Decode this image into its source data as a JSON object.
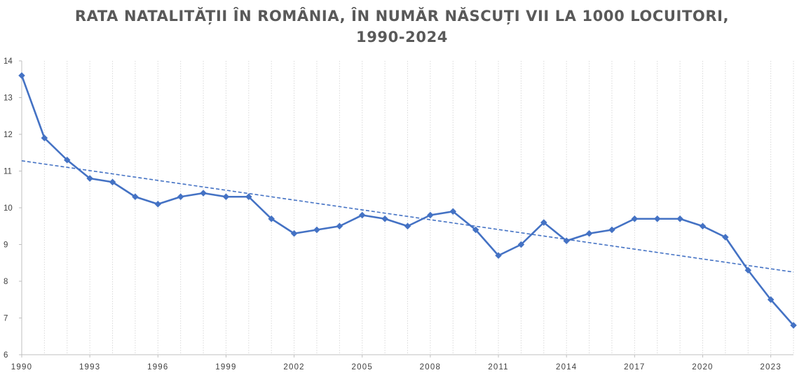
{
  "chart_data": {
    "type": "line",
    "title_line1": "RATA NATALITĂȚII ÎN ROMÂNIA, ÎN NUMĂR NĂSCUȚI VII LA 1000 LOCUITORI,",
    "title_line2": "1990-2024",
    "xlabel": "",
    "ylabel": "",
    "x": [
      1990,
      1991,
      1992,
      1993,
      1994,
      1995,
      1996,
      1997,
      1998,
      1999,
      2000,
      2001,
      2002,
      2003,
      2004,
      2005,
      2006,
      2007,
      2008,
      2009,
      2010,
      2011,
      2012,
      2013,
      2014,
      2015,
      2016,
      2017,
      2018,
      2019,
      2020,
      2021,
      2022,
      2023,
      2024
    ],
    "values": [
      13.6,
      11.9,
      11.3,
      10.8,
      10.7,
      10.3,
      10.1,
      10.3,
      10.4,
      10.3,
      10.3,
      9.7,
      9.3,
      9.4,
      9.5,
      9.8,
      9.7,
      9.5,
      9.8,
      9.9,
      9.4,
      8.7,
      9.0,
      9.6,
      9.1,
      9.3,
      9.4,
      9.7,
      9.7,
      9.7,
      9.5,
      9.2,
      8.3,
      7.5,
      6.8
    ],
    "x_tick_labels": [
      "1990",
      "1993",
      "1996",
      "1999",
      "2002",
      "2005",
      "2008",
      "2011",
      "2014",
      "2017",
      "2020",
      "2023"
    ],
    "y_tick_labels": [
      "6",
      "7",
      "8",
      "9",
      "10",
      "11",
      "12",
      "13",
      "14"
    ],
    "ylim": [
      6,
      14
    ],
    "xlim": [
      1990,
      2024
    ],
    "trendline": {
      "type": "linear",
      "start": 11.28,
      "end": 8.25
    },
    "grid": "vertical-dotted",
    "legend": "none",
    "colors": {
      "series": "#4472C4",
      "title": "#595959",
      "grid": "#D9D9D9",
      "axis": "#BFBFBF"
    }
  }
}
